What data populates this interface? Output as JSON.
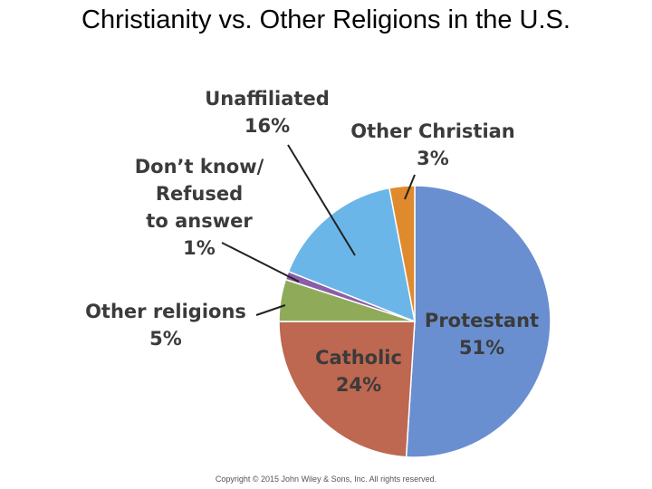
{
  "chart_data": {
    "type": "pie",
    "title": "Christianity vs. Other Religions in the U.S.",
    "categories": [
      [
        "Protestant"
      ],
      [
        "Catholic"
      ],
      [
        "Other religions"
      ],
      [
        "Don’t know/",
        "Refused",
        "to answer"
      ],
      [
        "Unaffiliated"
      ],
      [
        "Other Christian"
      ]
    ],
    "values": [
      51,
      24,
      5,
      1,
      16,
      3
    ],
    "value_labels": [
      "51%",
      "24%",
      "5%",
      "1%",
      "16%",
      "3%"
    ],
    "colors": [
      "#6a8fd0",
      "#be6751",
      "#8fab5a",
      "#8b5ea9",
      "#6bb6e9",
      "#e08a2e"
    ],
    "footer": "Copyright © 2015 John Wiley & Sons, Inc. All rights reserved."
  }
}
